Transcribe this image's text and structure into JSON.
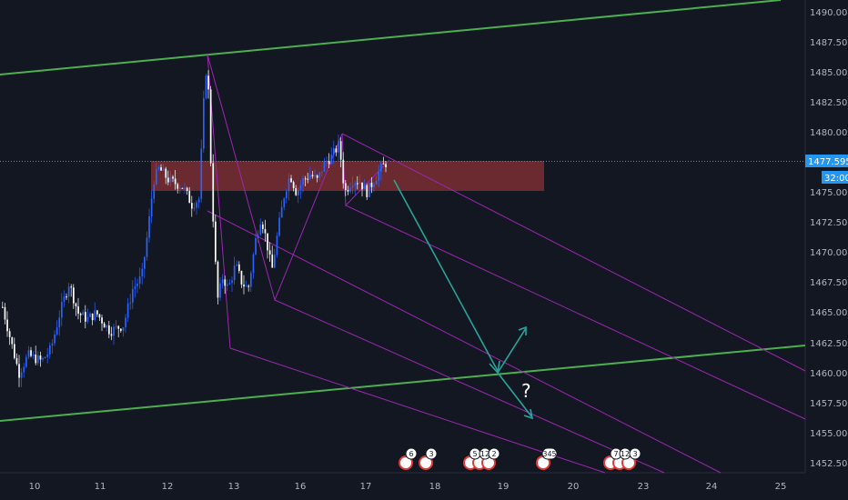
{
  "chart_data": {
    "type": "candlestick",
    "title": "",
    "xlabel": "",
    "ylabel": "",
    "x_ticks": [
      "10",
      "11",
      "12",
      "13",
      "16",
      "17",
      "18",
      "19",
      "20",
      "23",
      "24",
      "25"
    ],
    "y_ticks": [
      "1490.000",
      "1487.500",
      "1485.000",
      "1482.500",
      "1480.000",
      "1475.000",
      "1472.500",
      "1470.000",
      "1467.500",
      "1465.000",
      "1462.500",
      "1460.000",
      "1457.500",
      "1455.000",
      "1452.500"
    ],
    "ylim": [
      1452.0,
      1491.0
    ],
    "current_price": "1477.595",
    "countdown": "32:00",
    "grid": false,
    "colors": {
      "background": "#131722",
      "up_candle": "#2962ff",
      "down_candle": "#ffffff",
      "channel_lines": "#4caf50",
      "pitchfork": "#9c27b0",
      "resistance_zone": "#7b2d33",
      "forecast_arrow": "#26a69a",
      "price_line": "#2196f3"
    },
    "annotation_question": "?",
    "event_badges": [
      "6",
      "3",
      "5",
      "12",
      "2",
      "345",
      "7",
      "12",
      "3"
    ]
  }
}
